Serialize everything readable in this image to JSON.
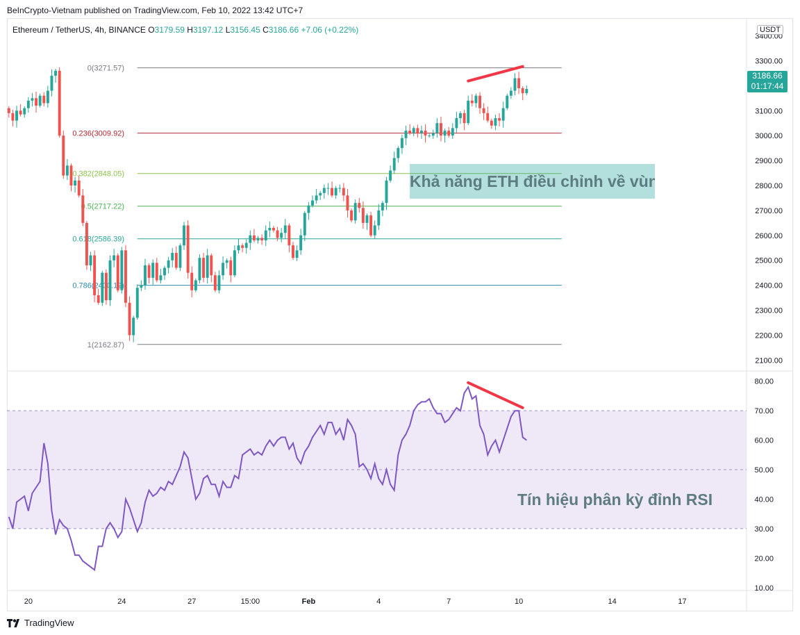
{
  "header": {
    "publisher": "BeInCrypto-Vietnam published on TradingView.com, Feb 10, 2022 13:42 UTC+7",
    "symbol": "Ethereum / TetherUS, 4h, BINANCE",
    "o_label": "O",
    "o_val": "3179.59",
    "h_label": "H",
    "h_val": "3197.12",
    "l_label": "L",
    "l_val": "3156.45",
    "c_label": "C",
    "c_val": "3186.66",
    "change": "+7.06 (+0.22%)"
  },
  "currency": "USDT",
  "last_price": {
    "price": "3186.66",
    "countdown": "01:17:44"
  },
  "annotations": {
    "eth_zone": "Khả năng ETH điều chỉnh về vùng này và phục hồi",
    "rsi_note": "Tín hiệu phân kỳ đỉnh RSI"
  },
  "footer": {
    "brand": "TradingView"
  },
  "colors": {
    "up": "#26a69a",
    "down": "#ef5350",
    "rsi": "#7e57c2",
    "rsi_band": "#ede7f6",
    "divergence": "#f23645"
  },
  "chart_data": [
    {
      "type": "candlestick",
      "title": "Ethereum / TetherUS, 4h, BINANCE",
      "ylim": [
        2062,
        3460
      ],
      "y_ticks": [
        "3400.00",
        "3300.00",
        "3200.00",
        "3100.00",
        "3000.00",
        "2900.00",
        "2800.00",
        "2700.00",
        "2600.00",
        "2500.00",
        "2400.00",
        "2300.00",
        "2200.00",
        "2100.00"
      ],
      "x_ticks": [
        {
          "label": "20",
          "bar": 5
        },
        {
          "label": "24",
          "bar": 29
        },
        {
          "label": "27",
          "bar": 47
        },
        {
          "label": "15:00",
          "bar": 62
        },
        {
          "label": "Feb",
          "bar": 77
        },
        {
          "label": "4",
          "bar": 95
        },
        {
          "label": "7",
          "bar": 113
        },
        {
          "label": "10",
          "bar": 131
        },
        {
          "label": "14",
          "bar": 155
        },
        {
          "label": "17",
          "bar": 173
        }
      ],
      "bars_total": 190,
      "fibonacci": [
        {
          "label": "0(3271.57)",
          "value": 3271.57,
          "color": "#787b86"
        },
        {
          "label": "0.236(3009.92)",
          "value": 3009.92,
          "color": "#b22833"
        },
        {
          "label": "0.382(2848.05)",
          "value": 2848.05,
          "color": "#8bc34a"
        },
        {
          "label": "0.5(2717.22)",
          "value": 2717.22,
          "color": "#4caf50"
        },
        {
          "label": "0.618(2586.39)",
          "value": 2586.39,
          "color": "#26a69a"
        },
        {
          "label": "0.786(2400.12)",
          "value": 2400.12,
          "color": "#2b8bb3"
        },
        {
          "label": "1(2162.87)",
          "value": 2162.87,
          "color": "#787b86"
        }
      ],
      "zone": {
        "low": 2717.22,
        "high": 2848.05,
        "from_bar": 105,
        "to_bar": 168
      },
      "divergence_line": {
        "from": {
          "bar": 118,
          "price": 3219
        },
        "to": {
          "bar": 132,
          "price": 3277
        }
      },
      "closes": [
        3090,
        3060,
        3100,
        3085,
        3110,
        3140,
        3150,
        3120,
        3160,
        3130,
        3180,
        3240,
        3260,
        3000,
        2840,
        2880,
        2800,
        2820,
        2760,
        2650,
        2480,
        2520,
        2360,
        2330,
        2450,
        2340,
        2500,
        2520,
        2380,
        2540,
        2330,
        2200,
        2270,
        2390,
        2400,
        2480,
        2430,
        2490,
        2420,
        2440,
        2470,
        2500,
        2530,
        2470,
        2560,
        2640,
        2450,
        2380,
        2420,
        2510,
        2430,
        2520,
        2440,
        2380,
        2440,
        2490,
        2500,
        2440,
        2540,
        2560,
        2550,
        2570,
        2600,
        2580,
        2590,
        2580,
        2620,
        2630,
        2620,
        2590,
        2610,
        2640,
        2560,
        2510,
        2540,
        2600,
        2690,
        2720,
        2740,
        2760,
        2770,
        2790,
        2790,
        2760,
        2790,
        2790,
        2760,
        2700,
        2660,
        2730,
        2710,
        2650,
        2680,
        2600,
        2640,
        2700,
        2730,
        2820,
        2860,
        2910,
        2950,
        2990,
        3020,
        3010,
        3030,
        3010,
        3020,
        3000,
        3000,
        3010,
        3050,
        3000,
        3020,
        3000,
        3030,
        3070,
        3090,
        3050,
        3140,
        3130,
        3160,
        3110,
        3090,
        3060,
        3040,
        3070,
        3060,
        3110,
        3160,
        3180,
        3230,
        3190,
        3170,
        3187
      ]
    },
    {
      "type": "line",
      "title": "RSI",
      "ylim": [
        9,
        83
      ],
      "y_ticks": [
        "80.00",
        "70.00",
        "60.00",
        "50.00",
        "40.00",
        "30.00",
        "20.00",
        "10.00"
      ],
      "band": [
        30,
        70
      ],
      "midline": 50,
      "divergence_line": {
        "from": {
          "bar": 118,
          "value": 79.5
        },
        "to": {
          "bar": 132,
          "value": 71
        }
      },
      "values": [
        34,
        30,
        39,
        40,
        41,
        36,
        42,
        44,
        46,
        59,
        52,
        36,
        28,
        33,
        31,
        30,
        26,
        21,
        21,
        19,
        18,
        17,
        16,
        24,
        24,
        30,
        32,
        30,
        27,
        29,
        40,
        37,
        33,
        29,
        32,
        39,
        43,
        41,
        42,
        44,
        43,
        46,
        45,
        48,
        51,
        56,
        54,
        47,
        40,
        42,
        47,
        48,
        45,
        45,
        41,
        46,
        44,
        44,
        48,
        47,
        55,
        56,
        57,
        55,
        56,
        55,
        58,
        60,
        58,
        60,
        61,
        61,
        57,
        59,
        54,
        52,
        56,
        58,
        61,
        63,
        65,
        62,
        66,
        66,
        62,
        64,
        60,
        67,
        65,
        62,
        51,
        52,
        50,
        47,
        52,
        47,
        45,
        50,
        45,
        43,
        55,
        60,
        62,
        65,
        70,
        72,
        73,
        73,
        74,
        71,
        69,
        69,
        66,
        67,
        69,
        71,
        70,
        76,
        78,
        74,
        75,
        65,
        62,
        55,
        58,
        60,
        56,
        60,
        64,
        68,
        70,
        70,
        61,
        60
      ]
    }
  ]
}
